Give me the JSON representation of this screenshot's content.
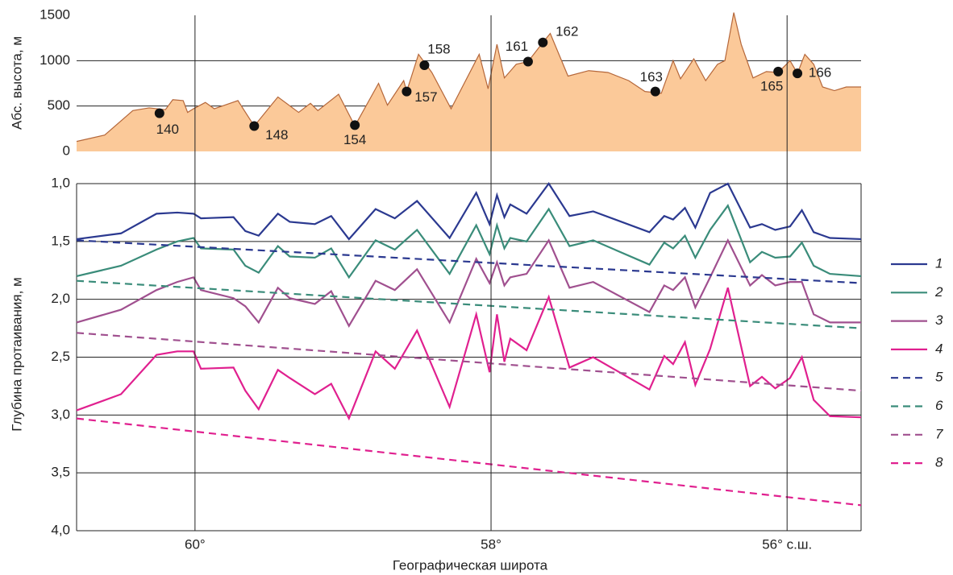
{
  "chart_data": [
    {
      "type": "area",
      "y_label": "Абс. высота, м",
      "color": "#fbc999",
      "edge_color": "#b5673a",
      "xlim": [
        60.8,
        55.5
      ],
      "ylim": [
        0,
        1500
      ],
      "yticks": [
        0,
        500,
        1000,
        1500
      ],
      "grid": true,
      "x": [
        60.8,
        60.61,
        60.42,
        60.31,
        60.2,
        60.15,
        60.08,
        60.05,
        60.01,
        59.93,
        59.87,
        59.71,
        59.6,
        59.44,
        59.3,
        59.22,
        59.17,
        59.03,
        58.92,
        58.76,
        58.7,
        58.59,
        58.57,
        58.49,
        58.4,
        58.27,
        58.08,
        58.02,
        57.96,
        57.91,
        57.83,
        57.75,
        57.65,
        57.6,
        57.48,
        57.34,
        57.21,
        57.07,
        56.96,
        56.85,
        56.77,
        56.72,
        56.63,
        56.55,
        56.47,
        56.42,
        56.36,
        56.31,
        56.23,
        56.14,
        56.06,
        55.98,
        55.93,
        55.88,
        55.82,
        55.76,
        55.68,
        55.6,
        55.5
      ],
      "values": [
        110,
        180,
        450,
        480,
        460,
        570,
        560,
        430,
        470,
        540,
        470,
        560,
        280,
        600,
        430,
        530,
        450,
        630,
        280,
        750,
        510,
        780,
        660,
        1070,
        870,
        470,
        1070,
        690,
        1180,
        810,
        960,
        990,
        1200,
        1300,
        830,
        890,
        870,
        780,
        660,
        640,
        1000,
        800,
        1020,
        780,
        960,
        1000,
        1530,
        1180,
        810,
        880,
        870,
        1000,
        860,
        1070,
        960,
        710,
        670,
        710,
        710
      ],
      "points": {
        "labels": [
          "140",
          "148",
          "154",
          "157",
          "158",
          "161",
          "162",
          "163",
          "165",
          "166"
        ],
        "x": [
          60.24,
          59.6,
          58.92,
          58.57,
          58.45,
          57.75,
          57.65,
          56.89,
          56.06,
          55.93
        ],
        "values": [
          420,
          280,
          290,
          660,
          950,
          990,
          1200,
          660,
          880,
          860
        ],
        "color": "#111"
      }
    },
    {
      "type": "line",
      "y_label": "Глубина протаивания, м",
      "x_label": "Географическая широта",
      "xlim": [
        60.8,
        55.5
      ],
      "xticks": [
        {
          "value": 60,
          "label": "60°"
        },
        {
          "value": 58,
          "label": "58°"
        },
        {
          "value": 56,
          "label": "56° с.ш."
        }
      ],
      "ylim": [
        4,
        1
      ],
      "yticks": [
        {
          "value": 1,
          "label": "1,0"
        },
        {
          "value": 1.5,
          "label": "1,5"
        },
        {
          "value": 2,
          "label": "2,0"
        },
        {
          "value": 2.5,
          "label": "2,5"
        },
        {
          "value": 3,
          "label": "3,0"
        },
        {
          "value": 3.5,
          "label": "3,5"
        },
        {
          "value": 4,
          "label": "4,0"
        }
      ],
      "grid": true,
      "legend": "right",
      "x": [
        60.8,
        60.5,
        60.26,
        60.12,
        60.01,
        59.96,
        59.74,
        59.66,
        59.57,
        59.44,
        59.36,
        59.19,
        59.08,
        58.96,
        58.78,
        58.65,
        58.5,
        58.28,
        58.1,
        58.01,
        57.96,
        57.91,
        57.87,
        57.76,
        57.61,
        57.47,
        57.31,
        56.93,
        56.83,
        56.77,
        56.69,
        56.62,
        56.52,
        56.4,
        56.25,
        56.17,
        56.08,
        55.98,
        55.9,
        55.82,
        55.71,
        55.5
      ],
      "series": [
        {
          "name": "1",
          "color": "#2b3990",
          "values": [
            1.48,
            1.43,
            1.26,
            1.25,
            1.26,
            1.3,
            1.29,
            1.41,
            1.45,
            1.26,
            1.33,
            1.35,
            1.28,
            1.48,
            1.22,
            1.3,
            1.15,
            1.47,
            1.08,
            1.35,
            1.1,
            1.29,
            1.18,
            1.26,
            1.0,
            1.28,
            1.24,
            1.42,
            1.28,
            1.31,
            1.21,
            1.38,
            1.08,
            1.0,
            1.38,
            1.35,
            1.4,
            1.37,
            1.23,
            1.42,
            1.47,
            1.48
          ]
        },
        {
          "name": "2",
          "color": "#3a8c7a",
          "values": [
            1.8,
            1.71,
            1.57,
            1.5,
            1.47,
            1.56,
            1.57,
            1.71,
            1.77,
            1.54,
            1.63,
            1.64,
            1.56,
            1.81,
            1.49,
            1.57,
            1.4,
            1.78,
            1.36,
            1.61,
            1.36,
            1.56,
            1.47,
            1.5,
            1.22,
            1.54,
            1.49,
            1.7,
            1.51,
            1.56,
            1.45,
            1.64,
            1.4,
            1.19,
            1.68,
            1.59,
            1.64,
            1.63,
            1.51,
            1.71,
            1.78,
            1.8
          ]
        },
        {
          "name": "3",
          "color": "#a0508f",
          "values": [
            2.2,
            2.09,
            1.92,
            1.85,
            1.81,
            1.92,
            1.99,
            2.06,
            2.2,
            1.9,
            1.99,
            2.04,
            1.93,
            2.23,
            1.84,
            1.92,
            1.74,
            2.2,
            1.65,
            1.86,
            1.68,
            1.88,
            1.81,
            1.78,
            1.49,
            1.9,
            1.85,
            2.11,
            1.88,
            1.92,
            1.81,
            2.07,
            1.81,
            1.49,
            1.88,
            1.79,
            1.88,
            1.85,
            1.85,
            2.13,
            2.2,
            2.2
          ]
        },
        {
          "name": "4",
          "color": "#e0208f",
          "values": [
            2.96,
            2.82,
            2.48,
            2.45,
            2.45,
            2.6,
            2.59,
            2.79,
            2.95,
            2.61,
            2.68,
            2.82,
            2.73,
            3.03,
            2.45,
            2.6,
            2.27,
            2.93,
            2.13,
            2.63,
            2.13,
            2.54,
            2.34,
            2.44,
            1.98,
            2.59,
            2.5,
            2.78,
            2.49,
            2.56,
            2.37,
            2.74,
            2.43,
            1.9,
            2.75,
            2.67,
            2.77,
            2.68,
            2.5,
            2.87,
            3.01,
            3.02
          ]
        },
        {
          "name": "5",
          "color": "#2b3990",
          "dashed": true,
          "x": [
            60.8,
            55.5
          ],
          "values": [
            1.49,
            1.86
          ]
        },
        {
          "name": "6",
          "color": "#3a8c7a",
          "dashed": true,
          "x": [
            60.8,
            55.5
          ],
          "values": [
            1.84,
            2.25
          ]
        },
        {
          "name": "7",
          "color": "#a0508f",
          "dashed": true,
          "x": [
            60.8,
            55.5
          ],
          "values": [
            2.29,
            2.79
          ]
        },
        {
          "name": "8",
          "color": "#e0208f",
          "dashed": true,
          "x": [
            60.8,
            55.5
          ],
          "values": [
            3.03,
            3.78
          ]
        }
      ]
    }
  ]
}
